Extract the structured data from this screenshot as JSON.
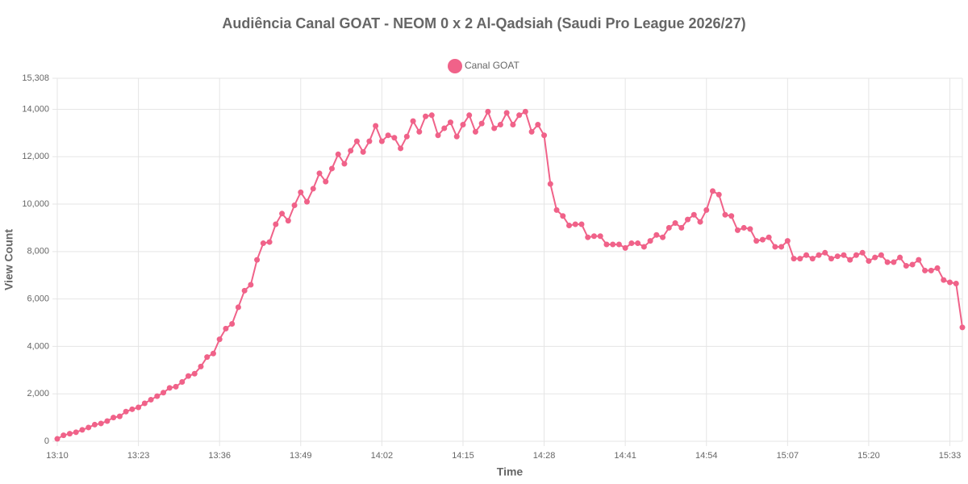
{
  "chart_data": {
    "type": "line",
    "title": "Audiência Canal GOAT - NEOM 0 x 2 Al-Qadsiah (Saudi Pro League 2026/27)",
    "x_label": "Time",
    "y_label": "View Count",
    "categories": [
      "13:10",
      null,
      null,
      null,
      null,
      null,
      null,
      null,
      null,
      null,
      null,
      null,
      null,
      "13:23",
      null,
      null,
      null,
      null,
      null,
      null,
      null,
      null,
      null,
      null,
      null,
      null,
      "13:36",
      null,
      null,
      null,
      null,
      null,
      null,
      null,
      null,
      null,
      null,
      null,
      null,
      "13:49",
      null,
      null,
      null,
      null,
      null,
      null,
      null,
      null,
      null,
      null,
      null,
      null,
      "14:02",
      null,
      null,
      null,
      null,
      null,
      null,
      null,
      null,
      null,
      null,
      null,
      null,
      "14:15",
      null,
      null,
      null,
      null,
      null,
      null,
      null,
      null,
      null,
      null,
      null,
      null,
      "14:28",
      null,
      null,
      null,
      null,
      null,
      null,
      null,
      null,
      null,
      null,
      null,
      null,
      "14:41",
      null,
      null,
      null,
      null,
      null,
      null,
      null,
      null,
      null,
      null,
      null,
      null,
      "14:54",
      null,
      null,
      null,
      null,
      null,
      null,
      null,
      null,
      null,
      null,
      null,
      null,
      "15:07",
      null,
      null,
      null,
      null,
      null,
      null,
      null,
      null,
      null,
      null,
      null,
      null,
      "15:20",
      null,
      null,
      null,
      null,
      null,
      null,
      null,
      null,
      null,
      null,
      null,
      null,
      "15:33",
      null,
      null
    ],
    "series": [
      {
        "name": "Canal GOAT",
        "color": "#f06289",
        "values": [
          100,
          250,
          320,
          380,
          480,
          580,
          700,
          750,
          850,
          1000,
          1050,
          1250,
          1350,
          1430,
          1600,
          1750,
          1900,
          2050,
          2250,
          2300,
          2500,
          2750,
          2850,
          3150,
          3550,
          3700,
          4300,
          4750,
          4950,
          5650,
          6350,
          6600,
          7650,
          8350,
          8400,
          9150,
          9600,
          9300,
          9950,
          10500,
          10100,
          10650,
          11300,
          10950,
          11500,
          12100,
          11700,
          12250,
          12650,
          12200,
          12650,
          13300,
          12650,
          12900,
          12800,
          12350,
          12850,
          13500,
          13050,
          13700,
          13750,
          12900,
          13200,
          13450,
          12850,
          13350,
          13750,
          13050,
          13400,
          13900,
          13200,
          13350,
          13850,
          13350,
          13750,
          13900,
          13050,
          13350,
          12900,
          10850,
          9750,
          9500,
          9100,
          9150,
          9150,
          8600,
          8650,
          8650,
          8300,
          8300,
          8300,
          8150,
          8350,
          8350,
          8200,
          8450,
          8700,
          8600,
          9000,
          9200,
          9000,
          9350,
          9550,
          9250,
          9750,
          10550,
          10400,
          9550,
          9500,
          8900,
          9000,
          8950,
          8450,
          8500,
          8600,
          8200,
          8200,
          8450,
          7700,
          7700,
          7850,
          7700,
          7850,
          7950,
          7700,
          7800,
          7850,
          7650,
          7850,
          7950,
          7600,
          7750,
          7850,
          7550,
          7550,
          7750,
          7400,
          7450,
          7650,
          7200,
          7200,
          7300,
          6800,
          6700,
          6650,
          4800
        ]
      }
    ],
    "ylim": [
      0,
      15308
    ],
    "yticks": [
      0,
      {
        "value": 2000,
        "label": "2,000"
      },
      {
        "value": 4000,
        "label": "4,000"
      },
      {
        "value": 6000,
        "label": "6,000"
      },
      {
        "value": 8000,
        "label": "8,000"
      },
      {
        "value": 10000,
        "label": "10,000"
      },
      {
        "value": 12000,
        "label": "12,000"
      },
      {
        "value": 14000,
        "label": "14,000"
      },
      {
        "value": 15308,
        "label": "15,308"
      }
    ],
    "grid": true,
    "legend": "top"
  }
}
